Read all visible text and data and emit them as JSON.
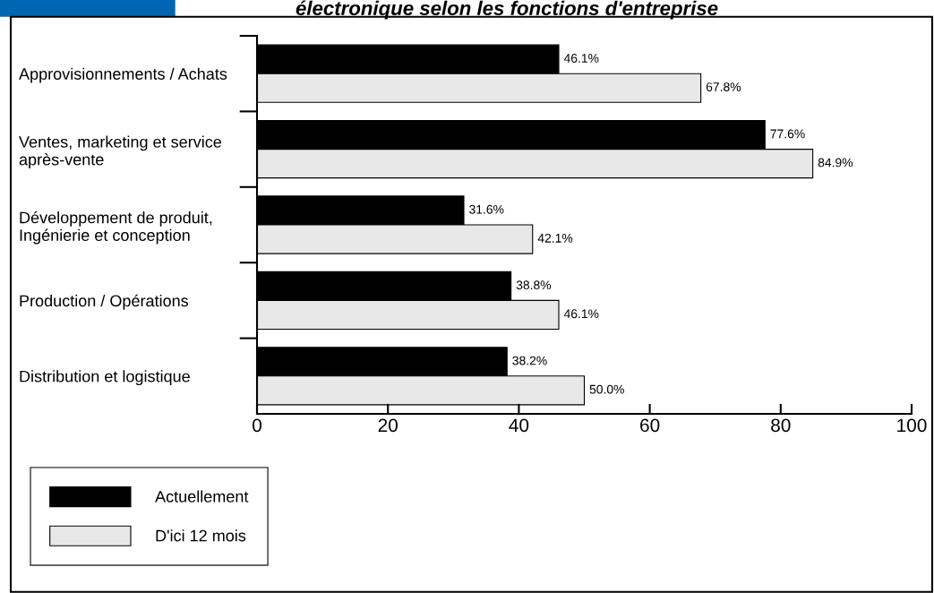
{
  "chart_data": {
    "type": "bar",
    "orientation": "horizontal",
    "title": "électronique selon les fonctions d'entreprise",
    "categories": [
      "Approvisionnements / Achats",
      "Ventes, marketing et service\naprès-vente",
      "Développement de produit,\nIngénierie et conception",
      "Production / Opérations",
      "Distribution et logistique"
    ],
    "series": [
      {
        "name": "Actuellement",
        "color": "#000000",
        "values": [
          46.1,
          77.6,
          31.6,
          38.8,
          38.2
        ],
        "value_labels": [
          "46.1%",
          "77.6%",
          "31.6%",
          "38.8%",
          "38.2%"
        ]
      },
      {
        "name": "D'ici 12 mois",
        "color": "#e8e8e8",
        "values": [
          67.8,
          84.9,
          42.1,
          46.1,
          50.0
        ],
        "value_labels": [
          "67.8%",
          "84.9%",
          "42.1%",
          "46.1%",
          "50.0%"
        ]
      }
    ],
    "xlim": [
      0,
      100
    ],
    "xticks": [
      0,
      20,
      40,
      60,
      80,
      100
    ],
    "grid": false,
    "legend": "bottom left"
  }
}
